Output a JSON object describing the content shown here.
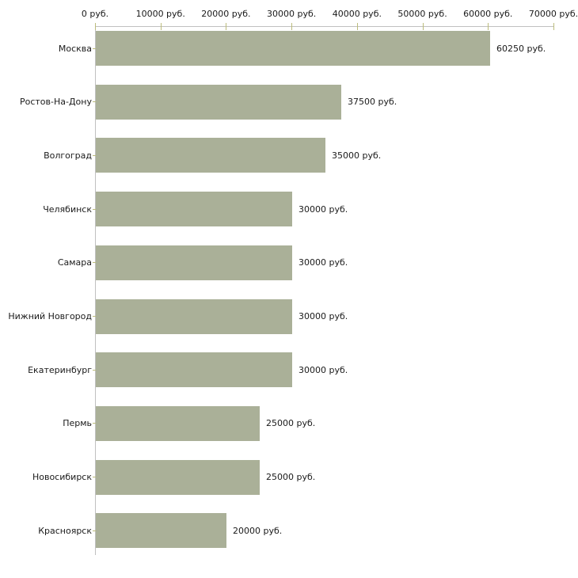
{
  "chart_data": {
    "type": "bar",
    "orientation": "horizontal",
    "title": "",
    "xlabel": "",
    "ylabel": "",
    "legend": "none",
    "grid": "off",
    "xlim": [
      0,
      70000
    ],
    "x_ticks": [
      0,
      10000,
      20000,
      30000,
      40000,
      50000,
      60000,
      70000
    ],
    "x_tick_labels": [
      "0 руб.",
      "10000 руб.",
      "20000 руб.",
      "30000 руб.",
      "40000 руб.",
      "50000 руб.",
      "60000 руб.",
      "70000 руб."
    ],
    "categories": [
      "Москва",
      "Ростов-На-Дону",
      "Волгоград",
      "Челябинск",
      "Самара",
      "Нижний Новгород",
      "Екатеринбург",
      "Пермь",
      "Новосибирск",
      "Красноярск"
    ],
    "values": [
      60250,
      37500,
      35000,
      30000,
      30000,
      30000,
      30000,
      25000,
      25000,
      20000
    ],
    "value_labels": [
      "60250 руб.",
      "37500 руб.",
      "35000 руб.",
      "30000 руб.",
      "30000 руб.",
      "30000 руб.",
      "30000 руб.",
      "25000 руб.",
      "25000 руб.",
      "20000 руб."
    ],
    "colors": {
      "bar": "#aab098",
      "axis": "#c0c0c0",
      "tick": "#bcbc7c",
      "text": "#1a1a1a",
      "background": "#ffffff"
    }
  }
}
